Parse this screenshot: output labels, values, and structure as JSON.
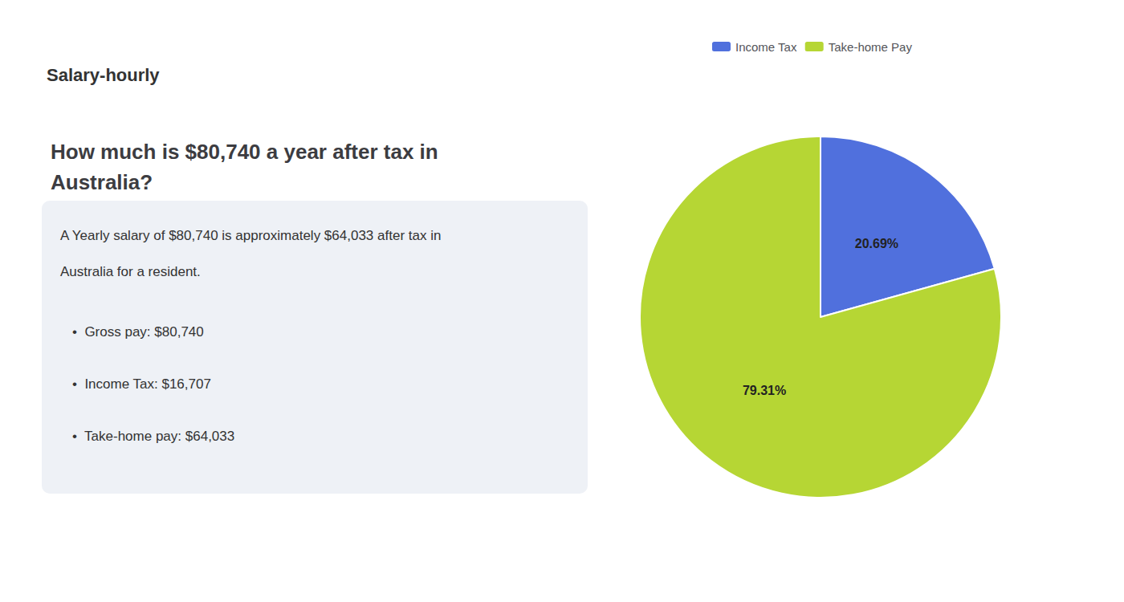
{
  "chart_data": {
    "type": "pie",
    "title": "How much is $80,740 a year after tax in\nAustralia?",
    "annotations": [
      "Salary-hourly",
      "A Yearly salary of $80,740 is approximately $64,033 after tax in",
      "Australia for a resident.",
      "•  Gross pay: $80,740",
      "•  Income Tax: $16,707",
      "•  Take-home pay: $64,033"
    ],
    "categories": [
      "Income Tax",
      "Take-home Pay"
    ],
    "values": [
      20.69,
      79.31
    ],
    "value_labels": [
      "20.69%",
      "79.31%"
    ],
    "data_labels": true,
    "legend": "top"
  }
}
